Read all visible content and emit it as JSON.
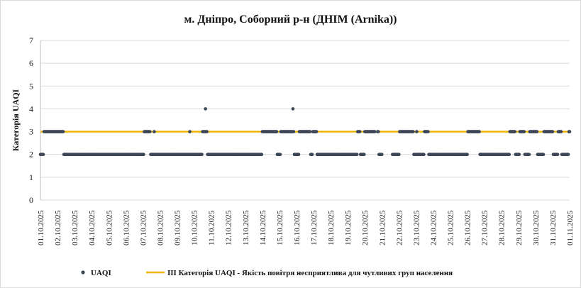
{
  "chart_data": {
    "type": "scatter",
    "title": "м. Дніпро, Соборний р-н (ДНІМ (Arnika))",
    "ylabel": "Категорія UAQI",
    "xlabel": "",
    "ylim": [
      0,
      7
    ],
    "yticks": [
      "0",
      "1",
      "2",
      "3",
      "4",
      "5",
      "6",
      "7"
    ],
    "xlim": [
      "2025-10-01",
      "2025-11-01"
    ],
    "xticks": [
      "01.10.2025",
      "02.10.2025",
      "03.10.2025",
      "04.10.2025",
      "05.10.2025",
      "06.10.2025",
      "07.10.2025",
      "08.10.2025",
      "09.10.2025",
      "10.10.2025",
      "11.10.2025",
      "12.10.2025",
      "13.10.2025",
      "14.10.2025",
      "15.10.2025",
      "16.10.2025",
      "17.10.2025",
      "18.10.2025",
      "19.10.2025",
      "20.10.2025",
      "21.10.2025",
      "22.10.2025",
      "23.10.2025",
      "24.10.2025",
      "25.10.2025",
      "26.10.2025",
      "27.10.2025",
      "28.10.2025",
      "29.10.2025",
      "30.10.2025",
      "31.10.2025",
      "01.11.2025"
    ],
    "grid": "horizontal",
    "legend_position": "bottom",
    "series": [
      {
        "name": "UAQI",
        "color": "#3d4758",
        "marker": "circle",
        "category3_ranges": [
          [
            "2025-10-01 05:00",
            "2025-10-02 08:00"
          ],
          [
            "2025-10-07 02:00",
            "2025-10-07 10:00"
          ],
          [
            "2025-10-07 16:00",
            "2025-10-07 16:00"
          ],
          [
            "2025-10-09 18:00",
            "2025-10-09 18:00"
          ],
          [
            "2025-10-10 12:00",
            "2025-10-10 18:00"
          ],
          [
            "2025-10-14 00:00",
            "2025-10-14 20:00"
          ],
          [
            "2025-10-15 02:00",
            "2025-10-15 20:00"
          ],
          [
            "2025-10-16 04:00",
            "2025-10-16 19:00"
          ],
          [
            "2025-10-16 23:00",
            "2025-10-17 04:00"
          ],
          [
            "2025-10-19 14:00",
            "2025-10-19 17:00"
          ],
          [
            "2025-10-20 00:00",
            "2025-10-20 19:00"
          ],
          [
            "2025-10-22 01:00",
            "2025-10-22 20:00"
          ],
          [
            "2025-10-23 01:00",
            "2025-10-23 01:00"
          ],
          [
            "2025-10-23 12:00",
            "2025-10-23 17:00"
          ],
          [
            "2025-10-26 01:00",
            "2025-10-26 17:00"
          ],
          [
            "2025-10-28 12:00",
            "2025-10-28 19:00"
          ],
          [
            "2025-10-29 02:00",
            "2025-10-29 08:00"
          ],
          [
            "2025-10-29 16:00",
            "2025-10-30 02:00"
          ],
          [
            "2025-10-30 12:00",
            "2025-10-31 00:00"
          ],
          [
            "2025-10-31 08:00",
            "2025-10-31 12:00"
          ],
          [
            "2025-10-31 23:00",
            "2025-11-01 01:00"
          ]
        ],
        "category4_points": [
          "2025-10-10 16:00",
          "2025-10-15 19:00"
        ],
        "gaps": [
          [
            "2025-10-20 15:00",
            "2025-10-20 17:00"
          ],
          [
            "2025-10-21 01:00",
            "2025-10-21 14:00"
          ],
          [
            "2025-10-22 23:00",
            "2025-10-22 23:00"
          ],
          [
            "2025-10-23 08:00",
            "2025-10-23 08:00"
          ]
        ],
        "default_value": 2
      },
      {
        "name": "ІІІ Категорія  UAQI  - Якість повітря  несприятлива   для чутливих  груп  населення",
        "color": "#f0b400",
        "type": "line",
        "y": 3
      }
    ]
  }
}
